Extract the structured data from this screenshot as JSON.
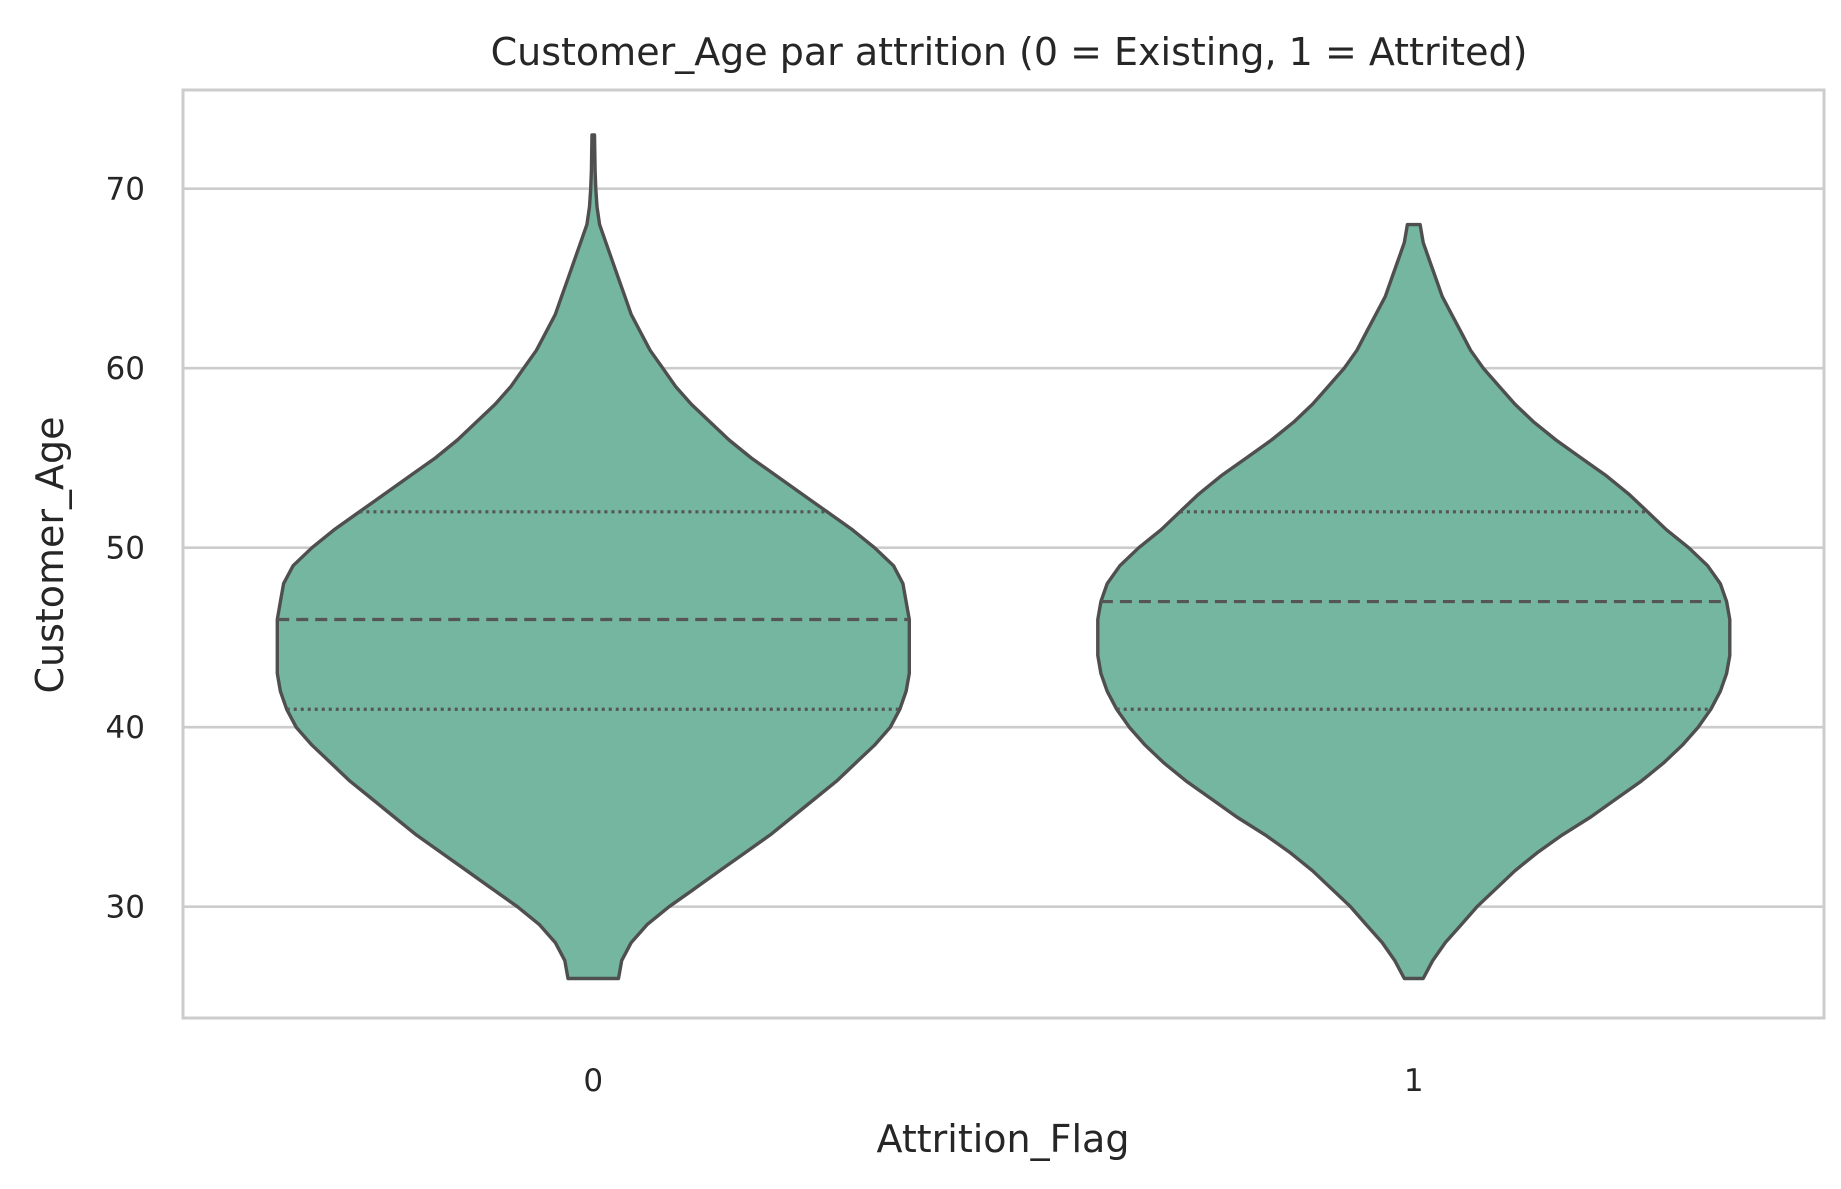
{
  "chart_data": {
    "type": "violin",
    "title": "Customer_Age par attrition (0 = Existing, 1 = Attrited)",
    "xlabel": "Attrition_Flag",
    "ylabel": "Customer_Age",
    "categories": [
      "0",
      "1"
    ],
    "ylim": [
      23.8,
      75.5
    ],
    "yticks": [
      30,
      40,
      50,
      60,
      70
    ],
    "grid": true,
    "fill_color": "#74b6a0",
    "outline_color": "#4f4f4f",
    "violins": [
      {
        "category": "0",
        "min": 26,
        "max": 73,
        "q1": 41,
        "median": 46,
        "q3": 52,
        "density_profile": [
          [
            26,
            0.08
          ],
          [
            27,
            0.09
          ],
          [
            28,
            0.12
          ],
          [
            29,
            0.17
          ],
          [
            30,
            0.24
          ],
          [
            31,
            0.32
          ],
          [
            32,
            0.4
          ],
          [
            33,
            0.48
          ],
          [
            34,
            0.56
          ],
          [
            35,
            0.63
          ],
          [
            36,
            0.7
          ],
          [
            37,
            0.77
          ],
          [
            38,
            0.83
          ],
          [
            39,
            0.89
          ],
          [
            40,
            0.94
          ],
          [
            41,
            0.97
          ],
          [
            42,
            0.99
          ],
          [
            43,
            1.0
          ],
          [
            44,
            1.0
          ],
          [
            45,
            1.0
          ],
          [
            46,
            1.0
          ],
          [
            47,
            0.99
          ],
          [
            48,
            0.98
          ],
          [
            49,
            0.95
          ],
          [
            50,
            0.89
          ],
          [
            51,
            0.82
          ],
          [
            52,
            0.74
          ],
          [
            53,
            0.66
          ],
          [
            54,
            0.58
          ],
          [
            55,
            0.5
          ],
          [
            56,
            0.43
          ],
          [
            57,
            0.37
          ],
          [
            58,
            0.31
          ],
          [
            59,
            0.26
          ],
          [
            60,
            0.22
          ],
          [
            61,
            0.18
          ],
          [
            62,
            0.15
          ],
          [
            63,
            0.12
          ],
          [
            64,
            0.1
          ],
          [
            65,
            0.08
          ],
          [
            66,
            0.06
          ],
          [
            67,
            0.04
          ],
          [
            68,
            0.02
          ],
          [
            69,
            0.012
          ],
          [
            70,
            0.008
          ],
          [
            71,
            0.006
          ],
          [
            72,
            0.005
          ],
          [
            73,
            0.004
          ]
        ]
      },
      {
        "category": "1",
        "min": 26,
        "max": 68,
        "q1": 41,
        "median": 47,
        "q3": 52,
        "density_profile": [
          [
            26,
            0.03
          ],
          [
            27,
            0.06
          ],
          [
            28,
            0.1
          ],
          [
            29,
            0.15
          ],
          [
            30,
            0.2
          ],
          [
            31,
            0.26
          ],
          [
            32,
            0.32
          ],
          [
            33,
            0.39
          ],
          [
            34,
            0.47
          ],
          [
            35,
            0.56
          ],
          [
            36,
            0.64
          ],
          [
            37,
            0.72
          ],
          [
            38,
            0.79
          ],
          [
            39,
            0.85
          ],
          [
            40,
            0.9
          ],
          [
            41,
            0.94
          ],
          [
            42,
            0.97
          ],
          [
            43,
            0.99
          ],
          [
            44,
            1.0
          ],
          [
            45,
            1.0
          ],
          [
            46,
            1.0
          ],
          [
            47,
            0.99
          ],
          [
            48,
            0.97
          ],
          [
            49,
            0.93
          ],
          [
            50,
            0.87
          ],
          [
            51,
            0.8
          ],
          [
            52,
            0.74
          ],
          [
            53,
            0.68
          ],
          [
            54,
            0.61
          ],
          [
            55,
            0.53
          ],
          [
            56,
            0.45
          ],
          [
            57,
            0.38
          ],
          [
            58,
            0.32
          ],
          [
            59,
            0.27
          ],
          [
            60,
            0.22
          ],
          [
            61,
            0.18
          ],
          [
            62,
            0.15
          ],
          [
            63,
            0.12
          ],
          [
            64,
            0.09
          ],
          [
            65,
            0.07
          ],
          [
            66,
            0.05
          ],
          [
            67,
            0.03
          ],
          [
            68,
            0.02
          ]
        ]
      }
    ]
  }
}
